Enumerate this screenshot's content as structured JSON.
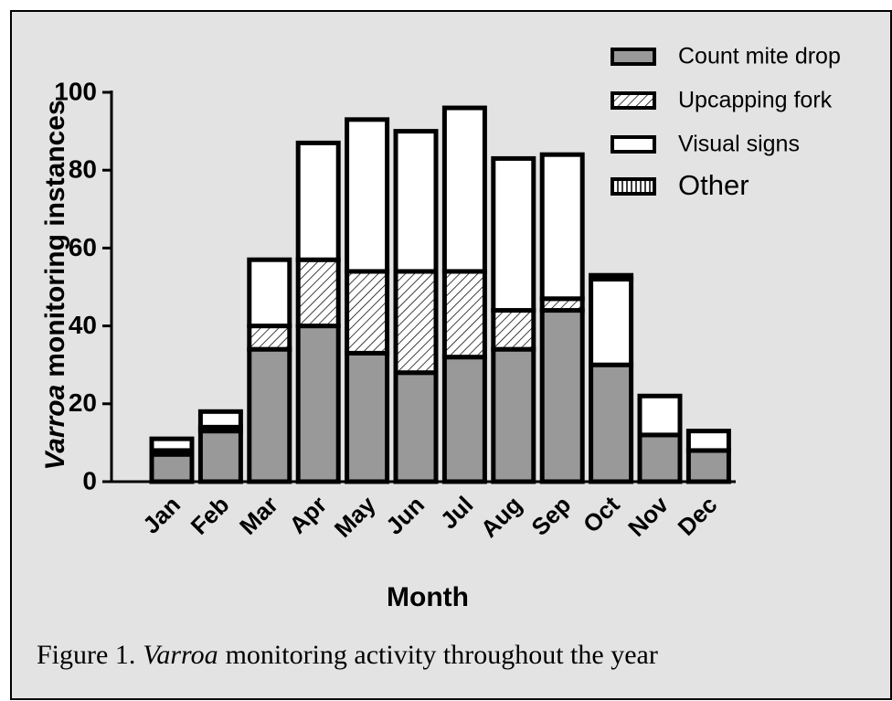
{
  "chart_data": {
    "type": "stacked_bar",
    "ylabel": {
      "italic": "Varroa",
      "rest": "monitoring instances"
    },
    "xlabel": "Month",
    "categories": [
      "Jan",
      "Feb",
      "Mar",
      "Apr",
      "May",
      "Jun",
      "Jul",
      "Aug",
      "Sep",
      "Oct",
      "Nov",
      "Dec"
    ],
    "series": [
      {
        "name": "Count mite drop",
        "color": "#999999",
        "pattern": "solid",
        "values": [
          7,
          13,
          34,
          40,
          33,
          28,
          32,
          34,
          44,
          30,
          12,
          8
        ]
      },
      {
        "name": "Upcapping fork",
        "color": "#ffffff",
        "pattern": "diagonal",
        "values": [
          1,
          1,
          6,
          17,
          21,
          26,
          22,
          10,
          3,
          0,
          0,
          0
        ]
      },
      {
        "name": "Visual signs",
        "color": "#ffffff",
        "pattern": "solid",
        "values": [
          3,
          4,
          17,
          30,
          39,
          36,
          42,
          39,
          37,
          22,
          10,
          5
        ]
      },
      {
        "name": "Other",
        "color": "#ffffff",
        "pattern": "vertical",
        "values": [
          0,
          0,
          0,
          0,
          0,
          0,
          0,
          0,
          0,
          1,
          0,
          0
        ]
      }
    ],
    "ylim": [
      0,
      100
    ],
    "yticks": [
      0,
      20,
      40,
      60,
      80,
      100
    ],
    "legend": "top-right"
  },
  "caption": {
    "prefix": "Figure 1.",
    "italic": "Varroa",
    "rest": "monitoring activity throughout the year"
  }
}
